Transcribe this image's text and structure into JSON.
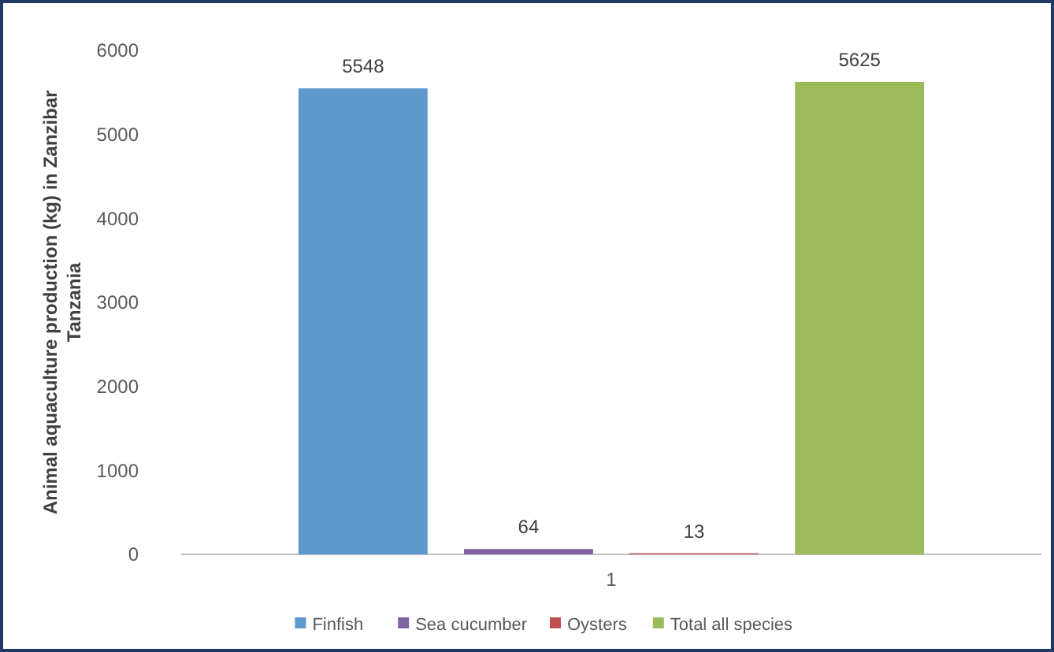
{
  "chart_data": {
    "type": "bar",
    "ylabel": "Animal aquaculture production (kg) in Zanzibar Tanzania",
    "categories": [
      "1"
    ],
    "series": [
      {
        "name": "Finfish",
        "color": "#5f98cc",
        "values": [
          5548
        ]
      },
      {
        "name": "Sea cucumber",
        "color": "#8064a2",
        "values": [
          64
        ]
      },
      {
        "name": "Oysters",
        "color": "#c0504d",
        "values": [
          13
        ]
      },
      {
        "name": "Total all species",
        "color": "#9bbb59",
        "values": [
          5625
        ]
      }
    ],
    "ylim": [
      0,
      6000
    ],
    "yticks": [
      0,
      1000,
      2000,
      3000,
      4000,
      5000,
      6000
    ],
    "data_labels": true,
    "legend": "bottom",
    "grid": false
  }
}
